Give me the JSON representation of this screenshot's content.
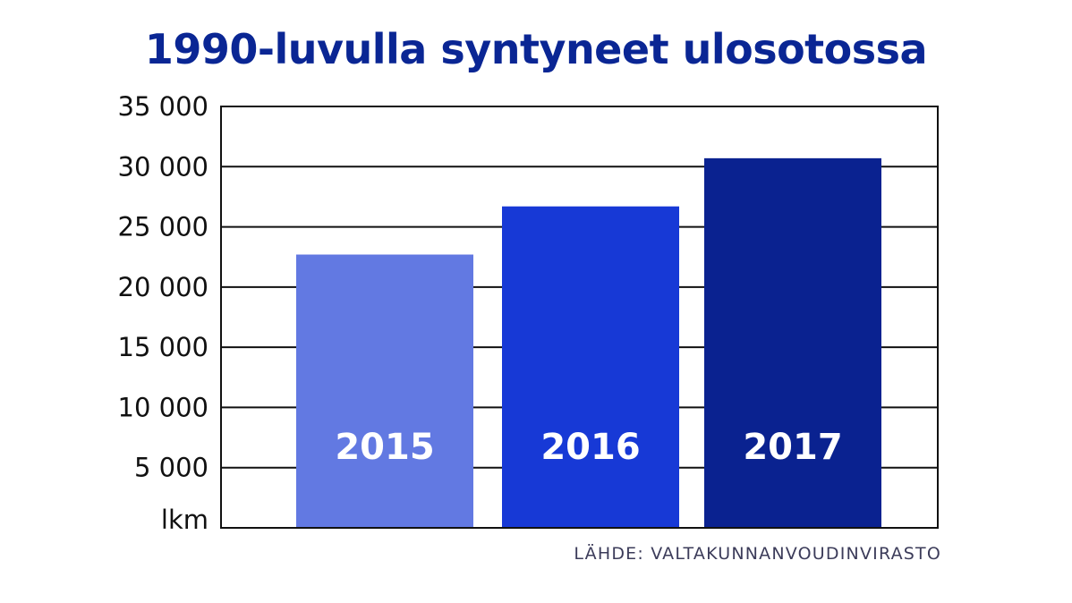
{
  "chart_data": {
    "type": "bar",
    "title": "1990-luvulla syntyneet ulosotossa",
    "categories": [
      "2015",
      "2016",
      "2017"
    ],
    "values": [
      22700,
      26700,
      30700
    ],
    "bar_colors": [
      "#6279e2",
      "#1739d6",
      "#0a2290"
    ],
    "ylabel": "lkm",
    "ylim": [
      0,
      35000
    ],
    "y_ticks": [
      {
        "value": 5000,
        "label": "5 000"
      },
      {
        "value": 10000,
        "label": "10 000"
      },
      {
        "value": 15000,
        "label": "15 000"
      },
      {
        "value": 20000,
        "label": "20 000"
      },
      {
        "value": 25000,
        "label": "25 000"
      },
      {
        "value": 30000,
        "label": "30 000"
      },
      {
        "value": 35000,
        "label": "35 000"
      }
    ],
    "grid": true,
    "source": "LÄHDE: VALTAKUNNANVOUDINVIRASTO"
  },
  "colors": {
    "title": "#0a2694",
    "grid": "#111111",
    "bar_label": "#ffffff"
  }
}
